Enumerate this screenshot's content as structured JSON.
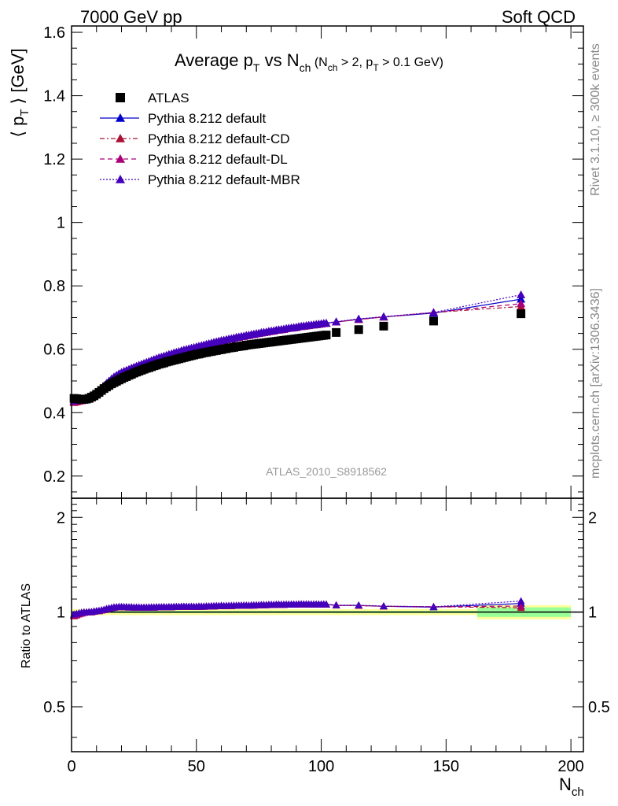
{
  "header": {
    "left": "7000 GeV pp",
    "right": "Soft QCD"
  },
  "side": {
    "rivet": "Rivet 3.1.10, ≥ 300k events",
    "mcplots": "mcplots.cern.ch [arXiv:1306.3436]"
  },
  "chart_data": {
    "type": "scatter",
    "title": {
      "main_a": "Average p",
      "main_sub_a": "T",
      "main_b": " vs N",
      "main_sub_b": "ch",
      "small_a": " (N",
      "small_sub_a": "ch",
      "small_b": " > 2, p",
      "small_sub_b": "T",
      "small_c": " > 0.1 GeV)"
    },
    "watermark": "ATLAS_2010_S8918562",
    "ylabel": "⟨ p_T ⟩ [GeV]",
    "ylabel_main": "⟨ p",
    "ylabel_sub": "T",
    "ylabel_tail": " ⟩  [GeV]",
    "ratio_ylabel": "Ratio to ATLAS",
    "xlabel_main": "N",
    "xlabel_sub": "ch",
    "xlim": [
      0,
      205
    ],
    "ylim": [
      0.13,
      1.62
    ],
    "ratio_ylim": [
      0.36,
      2.3
    ],
    "x_ticks": [
      "0",
      "50",
      "100",
      "150",
      "200"
    ],
    "y_ticks": [
      "0.2",
      "0.4",
      "0.6",
      "0.8",
      "1",
      "1.2",
      "1.4",
      "1.6"
    ],
    "ratio_ticks": [
      "0.5",
      "1",
      "2"
    ],
    "legend": [
      {
        "name": "ATLAS",
        "marker": "square",
        "color": "#000000",
        "dash": "none"
      },
      {
        "name": "Pythia 8.212 default",
        "marker": "triangle",
        "color": "#0000cc",
        "dash": "solid"
      },
      {
        "name": "Pythia 8.212 default-CD",
        "marker": "triangle",
        "color": "#aa1133",
        "dash": "dashdot"
      },
      {
        "name": "Pythia 8.212 default-DL",
        "marker": "triangle",
        "color": "#aa0077",
        "dash": "dashed"
      },
      {
        "name": "Pythia 8.212 default-MBR",
        "marker": "triangle",
        "color": "#4400bb",
        "dash": "dotted"
      }
    ],
    "x": [
      1,
      2,
      3,
      4,
      5,
      6,
      7,
      8,
      9,
      10,
      11,
      12,
      13,
      14,
      15,
      16,
      17,
      18,
      19,
      20,
      21,
      22,
      23,
      24,
      25,
      26,
      27,
      28,
      29,
      30,
      31,
      32,
      33,
      34,
      35,
      36,
      37,
      38,
      39,
      40,
      41,
      42,
      43,
      44,
      45,
      46,
      47,
      48,
      49,
      50,
      51,
      52,
      53,
      54,
      55,
      56,
      57,
      58,
      59,
      60,
      61,
      62,
      63,
      64,
      65,
      66,
      67,
      68,
      69,
      70,
      71,
      72,
      73,
      74,
      75,
      76,
      77,
      78,
      79,
      80,
      81,
      82,
      83,
      84,
      85,
      86,
      87,
      88,
      89,
      90,
      91,
      92,
      93,
      94,
      95,
      96,
      97,
      98,
      99,
      100,
      101,
      102,
      106,
      115,
      125,
      145,
      180
    ],
    "series": [
      {
        "name": "ATLAS",
        "values": [
          0.445,
          0.444,
          0.443,
          0.442,
          0.442,
          0.443,
          0.445,
          0.449,
          0.453,
          0.458,
          0.464,
          0.47,
          0.476,
          0.481,
          0.486,
          0.491,
          0.495,
          0.499,
          0.503,
          0.507,
          0.511,
          0.514,
          0.518,
          0.521,
          0.525,
          0.528,
          0.531,
          0.534,
          0.537,
          0.54,
          0.542,
          0.545,
          0.548,
          0.55,
          0.553,
          0.555,
          0.557,
          0.56,
          0.562,
          0.564,
          0.566,
          0.568,
          0.57,
          0.572,
          0.574,
          0.576,
          0.578,
          0.58,
          0.582,
          0.584,
          0.585,
          0.587,
          0.589,
          0.59,
          0.592,
          0.593,
          0.595,
          0.596,
          0.598,
          0.599,
          0.601,
          0.602,
          0.604,
          0.605,
          0.606,
          0.608,
          0.609,
          0.61,
          0.611,
          0.613,
          0.614,
          0.615,
          0.616,
          0.617,
          0.618,
          0.619,
          0.62,
          0.621,
          0.622,
          0.623,
          0.624,
          0.625,
          0.626,
          0.627,
          0.628,
          0.629,
          0.63,
          0.631,
          0.632,
          0.633,
          0.634,
          0.635,
          0.636,
          0.637,
          0.638,
          0.639,
          0.64,
          0.641,
          0.642,
          0.643,
          0.644,
          0.645,
          0.653,
          0.662,
          0.673,
          0.689,
          0.712
        ]
      },
      {
        "name": "Pythia 8.212 default",
        "values": [
          0.436,
          0.437,
          0.438,
          0.439,
          0.44,
          0.442,
          0.445,
          0.449,
          0.455,
          0.461,
          0.468,
          0.476,
          0.484,
          0.492,
          0.499,
          0.506,
          0.512,
          0.517,
          0.522,
          0.526,
          0.53,
          0.533,
          0.536,
          0.54,
          0.543,
          0.546,
          0.549,
          0.552,
          0.555,
          0.558,
          0.561,
          0.564,
          0.567,
          0.57,
          0.573,
          0.575,
          0.578,
          0.58,
          0.583,
          0.585,
          0.588,
          0.59,
          0.592,
          0.595,
          0.597,
          0.599,
          0.601,
          0.603,
          0.605,
          0.607,
          0.609,
          0.611,
          0.613,
          0.615,
          0.617,
          0.619,
          0.621,
          0.623,
          0.625,
          0.627,
          0.628,
          0.63,
          0.632,
          0.633,
          0.635,
          0.637,
          0.638,
          0.64,
          0.641,
          0.643,
          0.644,
          0.646,
          0.647,
          0.649,
          0.65,
          0.652,
          0.653,
          0.654,
          0.656,
          0.657,
          0.658,
          0.66,
          0.661,
          0.662,
          0.663,
          0.665,
          0.666,
          0.667,
          0.668,
          0.669,
          0.671,
          0.672,
          0.673,
          0.674,
          0.675,
          0.676,
          0.677,
          0.678,
          0.679,
          0.68,
          0.681,
          0.682,
          0.686,
          0.695,
          0.702,
          0.714,
          0.758
        ]
      },
      {
        "name": "Pythia 8.212 default-CD",
        "values": [
          0.432,
          0.434,
          0.436,
          0.438,
          0.44,
          0.442,
          0.445,
          0.449,
          0.455,
          0.461,
          0.468,
          0.476,
          0.484,
          0.492,
          0.499,
          0.506,
          0.512,
          0.517,
          0.522,
          0.526,
          0.53,
          0.533,
          0.536,
          0.54,
          0.543,
          0.546,
          0.549,
          0.552,
          0.555,
          0.558,
          0.561,
          0.564,
          0.567,
          0.57,
          0.573,
          0.575,
          0.578,
          0.58,
          0.583,
          0.585,
          0.588,
          0.59,
          0.592,
          0.595,
          0.597,
          0.599,
          0.601,
          0.603,
          0.605,
          0.607,
          0.609,
          0.611,
          0.613,
          0.615,
          0.617,
          0.619,
          0.621,
          0.623,
          0.625,
          0.627,
          0.628,
          0.63,
          0.632,
          0.633,
          0.635,
          0.637,
          0.638,
          0.64,
          0.641,
          0.643,
          0.644,
          0.646,
          0.647,
          0.649,
          0.65,
          0.652,
          0.653,
          0.654,
          0.656,
          0.657,
          0.658,
          0.66,
          0.661,
          0.662,
          0.663,
          0.665,
          0.666,
          0.667,
          0.668,
          0.669,
          0.671,
          0.672,
          0.673,
          0.674,
          0.675,
          0.676,
          0.677,
          0.678,
          0.679,
          0.68,
          0.681,
          0.682,
          0.686,
          0.694,
          0.702,
          0.716,
          0.735
        ]
      },
      {
        "name": "Pythia 8.212 default-DL",
        "values": [
          0.434,
          0.435,
          0.437,
          0.438,
          0.44,
          0.442,
          0.445,
          0.449,
          0.455,
          0.461,
          0.468,
          0.476,
          0.484,
          0.492,
          0.499,
          0.506,
          0.512,
          0.517,
          0.522,
          0.526,
          0.53,
          0.533,
          0.536,
          0.54,
          0.543,
          0.546,
          0.549,
          0.552,
          0.555,
          0.558,
          0.561,
          0.564,
          0.567,
          0.57,
          0.573,
          0.575,
          0.578,
          0.58,
          0.583,
          0.585,
          0.588,
          0.59,
          0.592,
          0.595,
          0.597,
          0.599,
          0.601,
          0.603,
          0.605,
          0.607,
          0.609,
          0.611,
          0.613,
          0.615,
          0.617,
          0.619,
          0.621,
          0.623,
          0.625,
          0.627,
          0.628,
          0.63,
          0.632,
          0.633,
          0.635,
          0.637,
          0.638,
          0.64,
          0.641,
          0.643,
          0.644,
          0.646,
          0.647,
          0.649,
          0.65,
          0.652,
          0.653,
          0.654,
          0.656,
          0.657,
          0.658,
          0.66,
          0.661,
          0.662,
          0.663,
          0.665,
          0.666,
          0.667,
          0.668,
          0.669,
          0.671,
          0.672,
          0.673,
          0.674,
          0.675,
          0.676,
          0.677,
          0.678,
          0.679,
          0.68,
          0.681,
          0.682,
          0.686,
          0.694,
          0.702,
          0.716,
          0.744
        ]
      },
      {
        "name": "Pythia 8.212 default-MBR",
        "values": [
          0.438,
          0.439,
          0.44,
          0.441,
          0.442,
          0.443,
          0.446,
          0.45,
          0.456,
          0.462,
          0.469,
          0.477,
          0.485,
          0.493,
          0.5,
          0.507,
          0.513,
          0.518,
          0.523,
          0.527,
          0.531,
          0.534,
          0.537,
          0.541,
          0.544,
          0.547,
          0.55,
          0.553,
          0.556,
          0.559,
          0.562,
          0.565,
          0.568,
          0.571,
          0.574,
          0.576,
          0.579,
          0.581,
          0.584,
          0.586,
          0.589,
          0.591,
          0.593,
          0.596,
          0.598,
          0.6,
          0.602,
          0.604,
          0.606,
          0.608,
          0.61,
          0.612,
          0.614,
          0.616,
          0.618,
          0.62,
          0.622,
          0.624,
          0.626,
          0.628,
          0.629,
          0.631,
          0.633,
          0.634,
          0.636,
          0.638,
          0.639,
          0.641,
          0.642,
          0.644,
          0.645,
          0.647,
          0.648,
          0.65,
          0.651,
          0.653,
          0.654,
          0.655,
          0.657,
          0.658,
          0.659,
          0.661,
          0.662,
          0.663,
          0.664,
          0.666,
          0.667,
          0.668,
          0.669,
          0.67,
          0.672,
          0.673,
          0.674,
          0.675,
          0.676,
          0.677,
          0.678,
          0.679,
          0.68,
          0.681,
          0.682,
          0.683,
          0.687,
          0.696,
          0.703,
          0.716,
          0.772
        ]
      }
    ]
  }
}
